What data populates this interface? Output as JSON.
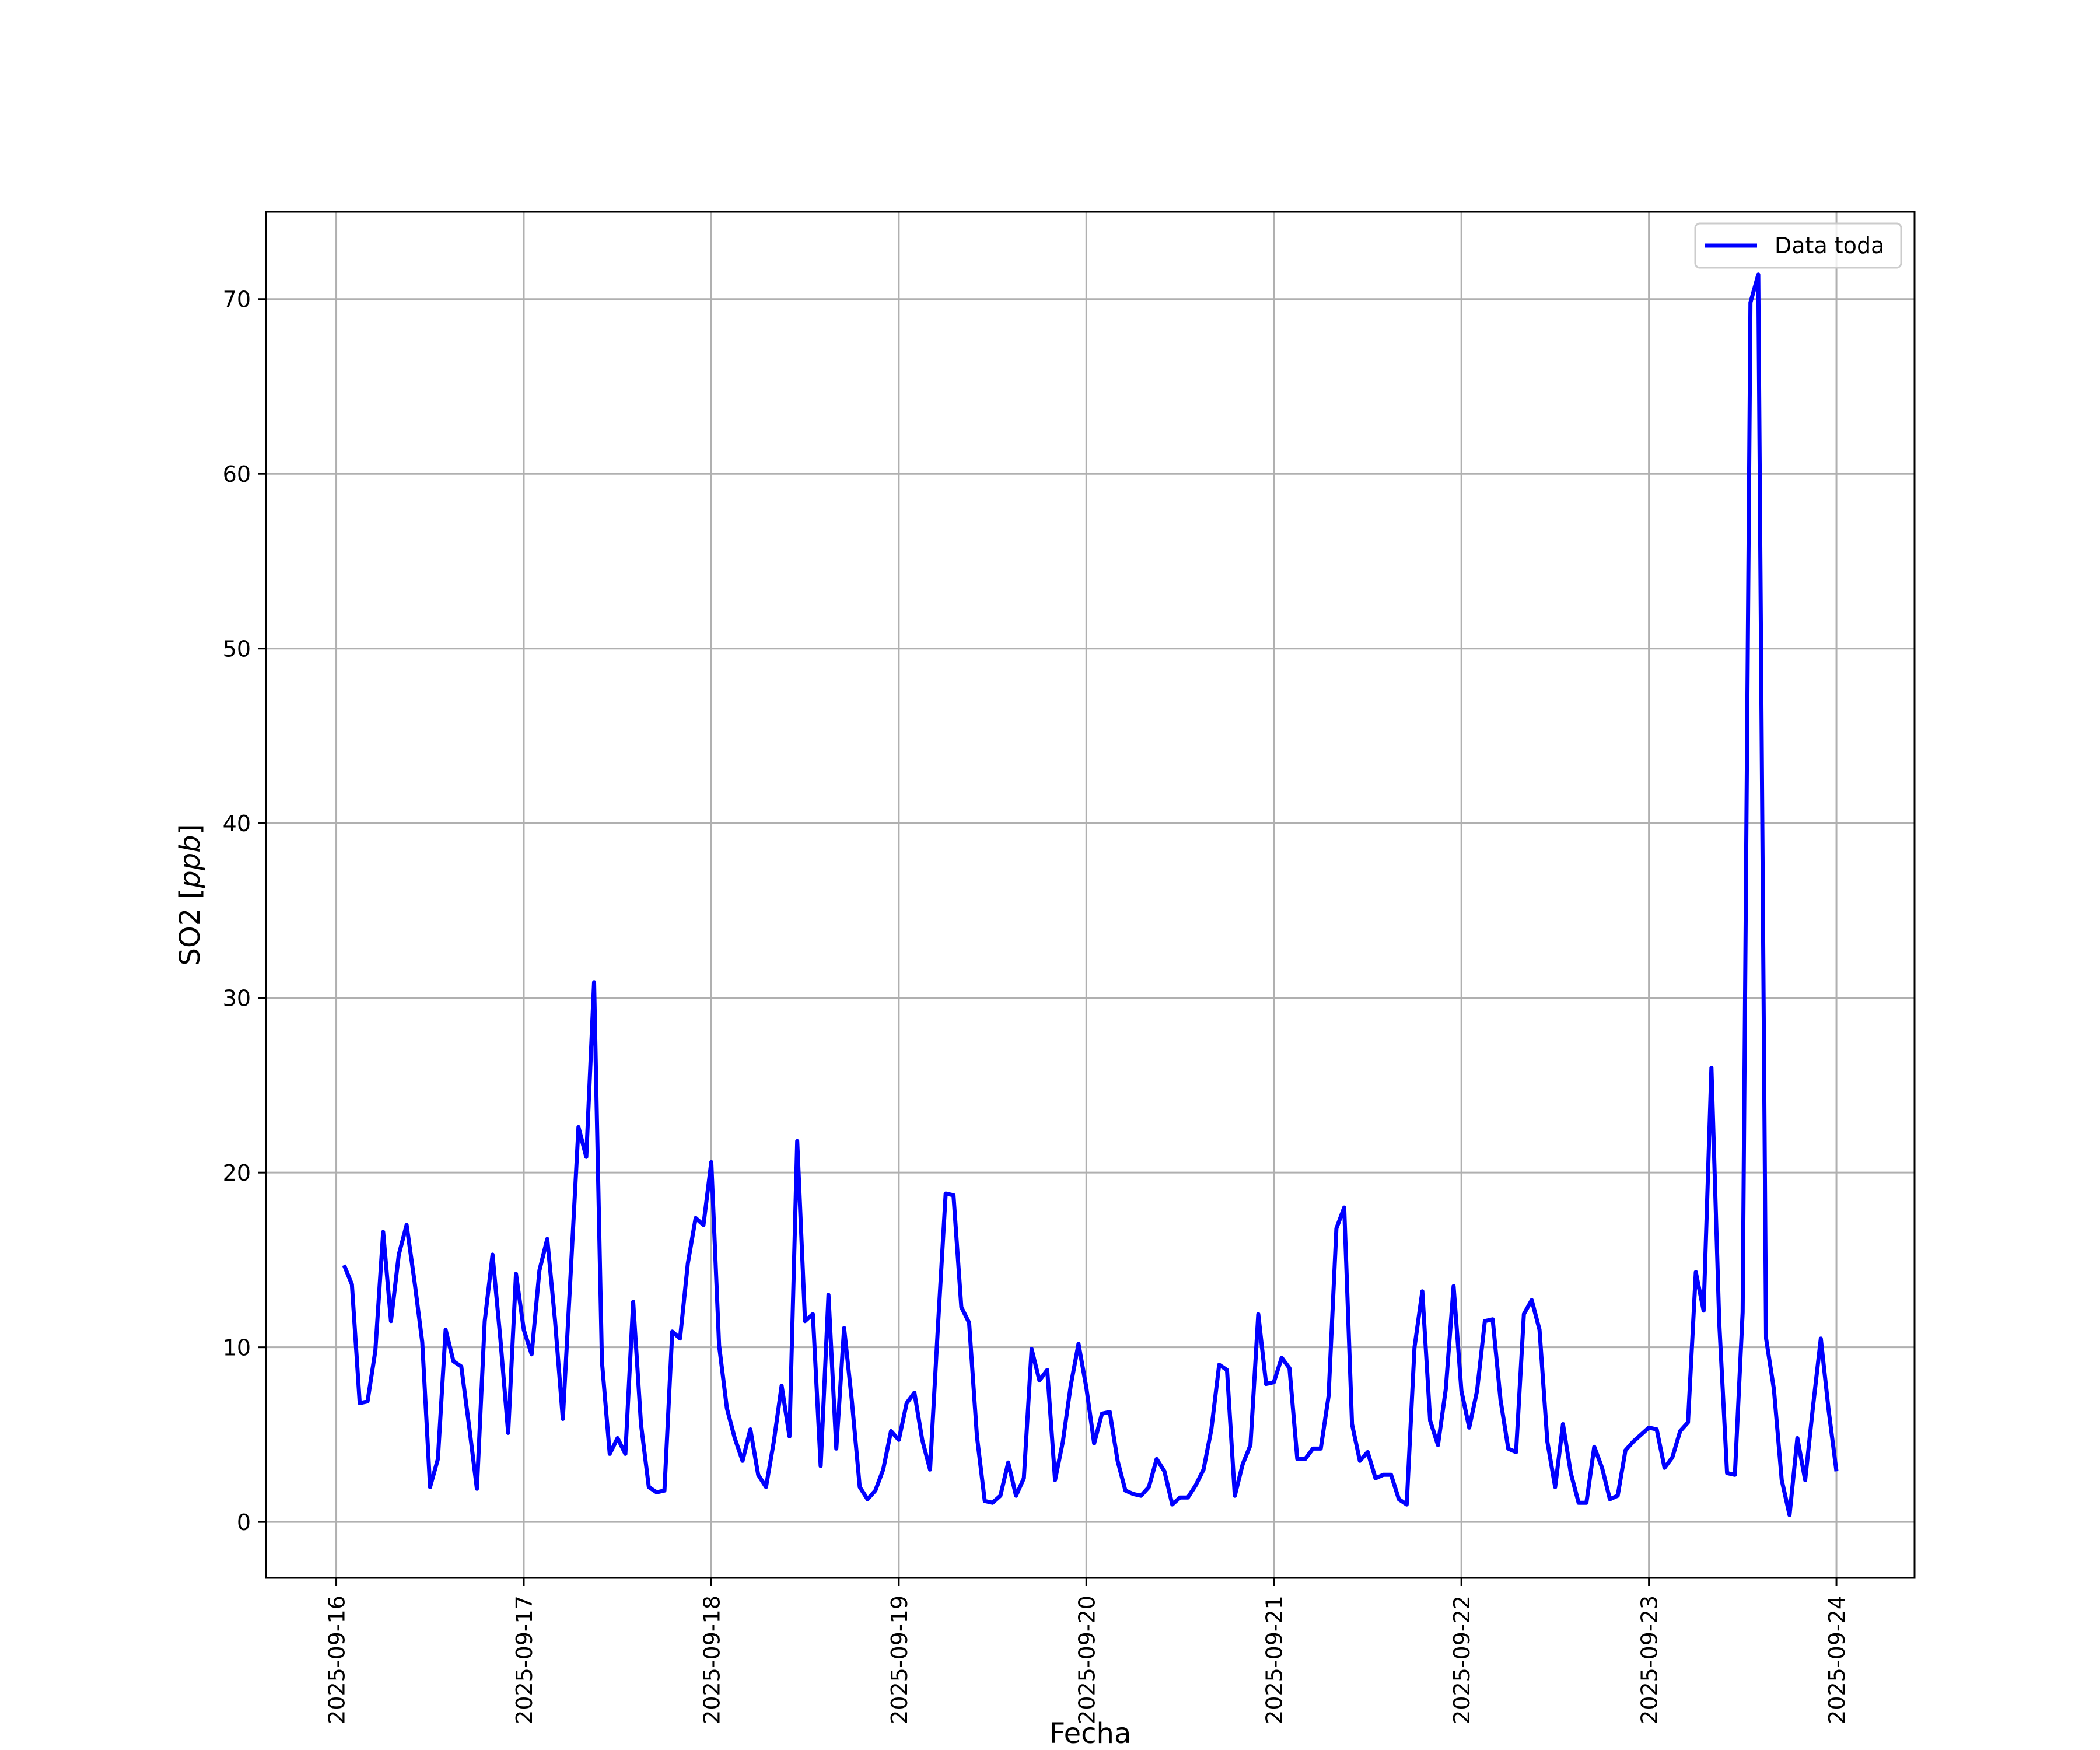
{
  "chart_data": {
    "type": "line",
    "xlabel": "Fecha",
    "ylabel": "SO2 [ppb]",
    "ylabel_parts": {
      "plain": "SO2 [",
      "italic": "ppb",
      "close": "]"
    },
    "xlim": [
      "2025-09-15T15:00",
      "2025-09-24T10:00"
    ],
    "ylim": [
      -3.2,
      75.0
    ],
    "x_ticks": [
      "2025-09-16",
      "2025-09-17",
      "2025-09-18",
      "2025-09-19",
      "2025-09-20",
      "2025-09-21",
      "2025-09-22",
      "2025-09-23",
      "2025-09-24"
    ],
    "y_ticks": [
      0,
      10,
      20,
      30,
      40,
      50,
      60,
      70
    ],
    "grid": true,
    "legend_position": "top-right",
    "series": [
      {
        "name": "Data toda",
        "color": "#0000ff",
        "x_start": "2025-09-16T01:00",
        "interval_hours": 1,
        "points": [
          [
            "2025-09-16T01:00",
            14.7
          ],
          [
            "2025-09-16T02:00",
            13.6
          ],
          [
            "2025-09-16T03:00",
            6.8
          ],
          [
            "2025-09-16T04:00",
            6.9
          ],
          [
            "2025-09-16T05:00",
            9.8
          ],
          [
            "2025-09-16T06:00",
            16.6
          ],
          [
            "2025-09-16T07:00",
            11.5
          ],
          [
            "2025-09-16T08:00",
            15.3
          ],
          [
            "2025-09-16T09:00",
            17.0
          ],
          [
            "2025-09-16T10:00",
            13.8
          ],
          [
            "2025-09-16T11:00",
            10.3
          ],
          [
            "2025-09-16T12:00",
            2.0
          ],
          [
            "2025-09-16T13:00",
            3.6
          ],
          [
            "2025-09-16T14:00",
            11.0
          ],
          [
            "2025-09-16T15:00",
            9.2
          ],
          [
            "2025-09-16T16:00",
            8.9
          ],
          [
            "2025-09-16T17:00",
            5.5
          ],
          [
            "2025-09-16T18:00",
            1.9
          ],
          [
            "2025-09-16T19:00",
            11.5
          ],
          [
            "2025-09-16T20:00",
            15.3
          ],
          [
            "2025-09-16T21:00",
            10.5
          ],
          [
            "2025-09-16T22:00",
            5.1
          ],
          [
            "2025-09-16T23:00",
            14.2
          ],
          [
            "2025-09-17T00:00",
            11.0
          ],
          [
            "2025-09-17T01:00",
            9.6
          ],
          [
            "2025-09-17T02:00",
            14.4
          ],
          [
            "2025-09-17T03:00",
            16.2
          ],
          [
            "2025-09-17T04:00",
            11.5
          ],
          [
            "2025-09-17T05:00",
            5.9
          ],
          [
            "2025-09-17T06:00",
            14.2
          ],
          [
            "2025-09-17T07:00",
            22.6
          ],
          [
            "2025-09-17T08:00",
            20.9
          ],
          [
            "2025-09-17T09:00",
            30.9
          ],
          [
            "2025-09-17T10:00",
            9.2
          ],
          [
            "2025-09-17T11:00",
            3.9
          ],
          [
            "2025-09-17T12:00",
            4.8
          ],
          [
            "2025-09-17T13:00",
            3.9
          ],
          [
            "2025-09-17T14:00",
            12.6
          ],
          [
            "2025-09-17T15:00",
            5.6
          ],
          [
            "2025-09-17T16:00",
            2.0
          ],
          [
            "2025-09-17T17:00",
            1.7
          ],
          [
            "2025-09-17T18:00",
            1.8
          ],
          [
            "2025-09-17T19:00",
            10.9
          ],
          [
            "2025-09-17T20:00",
            10.5
          ],
          [
            "2025-09-17T21:00",
            14.8
          ],
          [
            "2025-09-17T22:00",
            17.4
          ],
          [
            "2025-09-17T23:00",
            17.0
          ],
          [
            "2025-09-18T00:00",
            20.6
          ],
          [
            "2025-09-18T01:00",
            10.1
          ],
          [
            "2025-09-18T02:00",
            6.5
          ],
          [
            "2025-09-18T03:00",
            4.8
          ],
          [
            "2025-09-18T04:00",
            3.5
          ],
          [
            "2025-09-18T05:00",
            5.3
          ],
          [
            "2025-09-18T06:00",
            2.7
          ],
          [
            "2025-09-18T07:00",
            2.0
          ],
          [
            "2025-09-18T08:00",
            4.6
          ],
          [
            "2025-09-18T09:00",
            7.8
          ],
          [
            "2025-09-18T10:00",
            4.9
          ],
          [
            "2025-09-18T11:00",
            21.8
          ],
          [
            "2025-09-18T12:00",
            11.5
          ],
          [
            "2025-09-18T13:00",
            11.9
          ],
          [
            "2025-09-18T14:00",
            3.2
          ],
          [
            "2025-09-18T15:00",
            13.0
          ],
          [
            "2025-09-18T16:00",
            4.2
          ],
          [
            "2025-09-18T17:00",
            11.1
          ],
          [
            "2025-09-18T18:00",
            6.9
          ],
          [
            "2025-09-18T19:00",
            2.0
          ],
          [
            "2025-09-18T20:00",
            1.3
          ],
          [
            "2025-09-18T21:00",
            1.8
          ],
          [
            "2025-09-18T22:00",
            3.0
          ],
          [
            "2025-09-18T23:00",
            5.2
          ],
          [
            "2025-09-19T00:00",
            4.7
          ],
          [
            "2025-09-19T01:00",
            6.8
          ],
          [
            "2025-09-19T02:00",
            7.4
          ],
          [
            "2025-09-19T03:00",
            4.7
          ],
          [
            "2025-09-19T04:00",
            3.0
          ],
          [
            "2025-09-19T05:00",
            11.1
          ],
          [
            "2025-09-19T06:00",
            18.8
          ],
          [
            "2025-09-19T07:00",
            18.7
          ],
          [
            "2025-09-19T08:00",
            12.3
          ],
          [
            "2025-09-19T09:00",
            11.4
          ],
          [
            "2025-09-19T10:00",
            4.9
          ],
          [
            "2025-09-19T11:00",
            1.2
          ],
          [
            "2025-09-19T12:00",
            1.1
          ],
          [
            "2025-09-19T13:00",
            1.5
          ],
          [
            "2025-09-19T14:00",
            3.4
          ],
          [
            "2025-09-19T15:00",
            1.5
          ],
          [
            "2025-09-19T16:00",
            2.5
          ],
          [
            "2025-09-19T17:00",
            9.9
          ],
          [
            "2025-09-19T18:00",
            8.1
          ],
          [
            "2025-09-19T19:00",
            8.7
          ],
          [
            "2025-09-19T20:00",
            2.4
          ],
          [
            "2025-09-19T21:00",
            4.6
          ],
          [
            "2025-09-19T22:00",
            7.8
          ],
          [
            "2025-09-19T23:00",
            10.2
          ],
          [
            "2025-09-20T00:00",
            7.7
          ],
          [
            "2025-09-20T01:00",
            4.5
          ],
          [
            "2025-09-20T02:00",
            6.2
          ],
          [
            "2025-09-20T03:00",
            6.3
          ],
          [
            "2025-09-20T04:00",
            3.5
          ],
          [
            "2025-09-20T05:00",
            1.8
          ],
          [
            "2025-09-20T06:00",
            1.6
          ],
          [
            "2025-09-20T07:00",
            1.5
          ],
          [
            "2025-09-20T08:00",
            2.0
          ],
          [
            "2025-09-20T09:00",
            3.6
          ],
          [
            "2025-09-20T10:00",
            2.9
          ],
          [
            "2025-09-20T11:00",
            1.0
          ],
          [
            "2025-09-20T12:00",
            1.4
          ],
          [
            "2025-09-20T13:00",
            1.4
          ],
          [
            "2025-09-20T14:00",
            2.1
          ],
          [
            "2025-09-20T15:00",
            3.0
          ],
          [
            "2025-09-20T16:00",
            5.3
          ],
          [
            "2025-09-20T17:00",
            9.0
          ],
          [
            "2025-09-20T18:00",
            8.7
          ],
          [
            "2025-09-20T19:00",
            1.5
          ],
          [
            "2025-09-20T20:00",
            3.3
          ],
          [
            "2025-09-20T21:00",
            4.4
          ],
          [
            "2025-09-20T22:00",
            11.9
          ],
          [
            "2025-09-20T23:00",
            7.9
          ],
          [
            "2025-09-21T00:00",
            8.0
          ],
          [
            "2025-09-21T01:00",
            9.4
          ],
          [
            "2025-09-21T02:00",
            8.8
          ],
          [
            "2025-09-21T03:00",
            3.6
          ],
          [
            "2025-09-21T04:00",
            3.6
          ],
          [
            "2025-09-21T05:00",
            4.2
          ],
          [
            "2025-09-21T06:00",
            4.2
          ],
          [
            "2025-09-21T07:00",
            7.2
          ],
          [
            "2025-09-21T08:00",
            16.8
          ],
          [
            "2025-09-21T09:00",
            18.0
          ],
          [
            "2025-09-21T10:00",
            5.6
          ],
          [
            "2025-09-21T11:00",
            3.5
          ],
          [
            "2025-09-21T12:00",
            4.0
          ],
          [
            "2025-09-21T13:00",
            2.5
          ],
          [
            "2025-09-21T14:00",
            2.7
          ],
          [
            "2025-09-21T15:00",
            2.7
          ],
          [
            "2025-09-21T16:00",
            1.3
          ],
          [
            "2025-09-21T17:00",
            1.0
          ],
          [
            "2025-09-21T18:00",
            10.0
          ],
          [
            "2025-09-21T19:00",
            13.2
          ],
          [
            "2025-09-21T20:00",
            5.8
          ],
          [
            "2025-09-21T21:00",
            4.4
          ],
          [
            "2025-09-21T22:00",
            7.6
          ],
          [
            "2025-09-21T23:00",
            13.5
          ],
          [
            "2025-09-22T00:00",
            7.5
          ],
          [
            "2025-09-22T01:00",
            5.4
          ],
          [
            "2025-09-22T02:00",
            7.5
          ],
          [
            "2025-09-22T03:00",
            11.5
          ],
          [
            "2025-09-22T04:00",
            11.6
          ],
          [
            "2025-09-22T05:00",
            7.0
          ],
          [
            "2025-09-22T06:00",
            4.2
          ],
          [
            "2025-09-22T07:00",
            4.0
          ],
          [
            "2025-09-22T08:00",
            11.9
          ],
          [
            "2025-09-22T09:00",
            12.7
          ],
          [
            "2025-09-22T10:00",
            11.0
          ],
          [
            "2025-09-22T11:00",
            4.6
          ],
          [
            "2025-09-22T12:00",
            2.0
          ],
          [
            "2025-09-22T13:00",
            5.6
          ],
          [
            "2025-09-22T14:00",
            2.8
          ],
          [
            "2025-09-22T15:00",
            1.1
          ],
          [
            "2025-09-22T16:00",
            1.1
          ],
          [
            "2025-09-22T17:00",
            4.3
          ],
          [
            "2025-09-22T18:00",
            3.1
          ],
          [
            "2025-09-22T19:00",
            1.3
          ],
          [
            "2025-09-22T20:00",
            1.5
          ],
          [
            "2025-09-22T21:00",
            4.1
          ],
          [
            "2025-09-22T22:00",
            4.6
          ],
          [
            "2025-09-22T23:00",
            5.0
          ],
          [
            "2025-09-23T00:00",
            5.4
          ],
          [
            "2025-09-23T01:00",
            5.3
          ],
          [
            "2025-09-23T02:00",
            3.1
          ],
          [
            "2025-09-23T03:00",
            3.7
          ],
          [
            "2025-09-23T04:00",
            5.2
          ],
          [
            "2025-09-23T05:00",
            5.7
          ],
          [
            "2025-09-23T06:00",
            14.3
          ],
          [
            "2025-09-23T07:00",
            12.1
          ],
          [
            "2025-09-23T08:00",
            26.0
          ],
          [
            "2025-09-23T09:00",
            11.4
          ],
          [
            "2025-09-23T10:00",
            2.8
          ],
          [
            "2025-09-23T11:00",
            2.7
          ],
          [
            "2025-09-23T12:00",
            12.0
          ],
          [
            "2025-09-23T13:00",
            69.8
          ],
          [
            "2025-09-23T14:00",
            71.4
          ],
          [
            "2025-09-23T15:00",
            10.5
          ],
          [
            "2025-09-23T16:00",
            7.6
          ],
          [
            "2025-09-23T17:00",
            2.4
          ],
          [
            "2025-09-23T18:00",
            0.4
          ],
          [
            "2025-09-23T19:00",
            4.8
          ],
          [
            "2025-09-23T20:00",
            2.4
          ],
          [
            "2025-09-23T21:00",
            6.6
          ],
          [
            "2025-09-23T22:00",
            10.5
          ],
          [
            "2025-09-23T23:00",
            6.4
          ],
          [
            "2025-09-24T00:00",
            2.9
          ]
        ]
      }
    ]
  }
}
